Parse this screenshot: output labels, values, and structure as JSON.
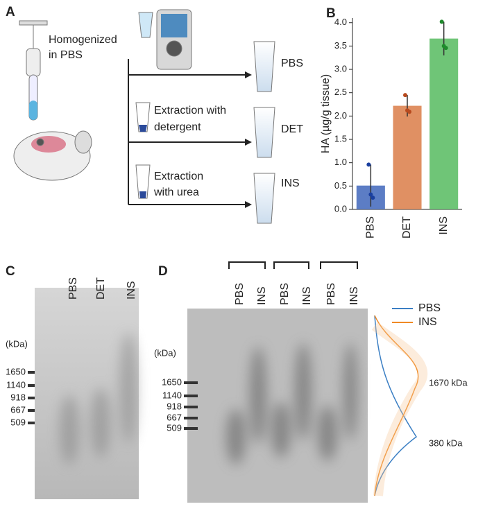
{
  "panel_labels": [
    "A",
    "B",
    "C",
    "D"
  ],
  "workflow": {
    "homogenize": [
      "Homogenized",
      "in PBS"
    ],
    "detergent": [
      "Extraction with",
      "detergent"
    ],
    "urea": [
      "Extraction",
      "with urea"
    ],
    "fractions": [
      "PBS",
      "DET",
      "INS"
    ]
  },
  "chart_data": {
    "type": "bar",
    "y_label": "HA (µg/g  tissue)",
    "categories": [
      "PBS",
      "DET",
      "INS"
    ],
    "values": [
      0.51,
      2.22,
      3.66
    ],
    "errors": [
      0.45,
      0.23,
      0.36
    ],
    "points": [
      [
        0.96,
        0.32,
        0.25
      ],
      [
        2.45,
        2.12,
        2.09
      ],
      [
        4.02,
        3.5,
        3.46
      ]
    ],
    "colors": [
      "#4a6fbf",
      "#dd8452",
      "#5fbf68"
    ],
    "point_colors": [
      "#1a3f9f",
      "#b84a1e",
      "#1f8a2c"
    ],
    "ylim": [
      0,
      4.1
    ],
    "yticks": [
      {
        "value": 0,
        "label": "0.0"
      },
      {
        "value": 0.5,
        "label": "0.5"
      },
      {
        "value": 1,
        "label": "1.0"
      },
      {
        "value": 1.5,
        "label": "1.5"
      },
      {
        "value": 2,
        "label": "2.0"
      },
      {
        "value": 2.5,
        "label": "2.5"
      },
      {
        "value": 3,
        "label": "3.0"
      },
      {
        "value": 3.5,
        "label": "3.5"
      },
      {
        "value": 4,
        "label": "4.0"
      }
    ]
  },
  "gel_c": {
    "lanes": [
      "PBS",
      "DET",
      "INS"
    ],
    "unit": "(kDa)",
    "markers": [
      1650,
      1140,
      918,
      667,
      509
    ]
  },
  "gel_d": {
    "lanes": [
      "PBS",
      "INS",
      "PBS",
      "INS",
      "PBS",
      "INS"
    ],
    "unit": "(kDa)",
    "markers": [
      1650,
      1140,
      918,
      667,
      509
    ],
    "legend": [
      {
        "name": "PBS",
        "color": "#3b7fc4"
      },
      {
        "name": "INS",
        "color": "#f08a24"
      }
    ],
    "peaks": [
      "1670 kDa",
      "380 kDa"
    ]
  }
}
